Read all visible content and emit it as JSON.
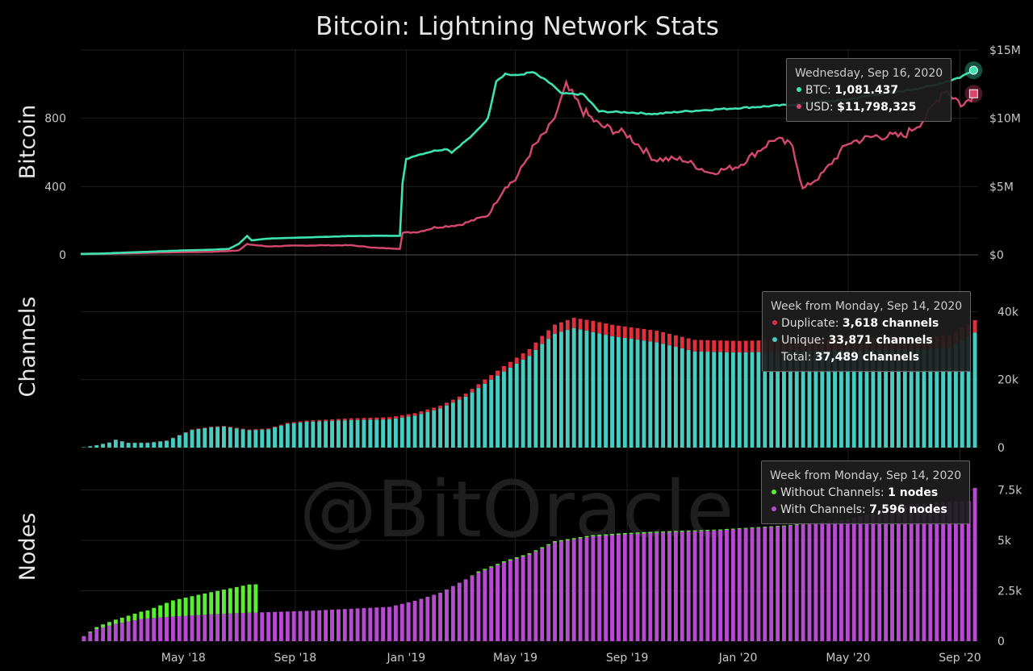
{
  "title": "Bitcoin: Lightning Network Stats",
  "watermark": "@BitOracle",
  "colors": {
    "btc_line": "#3de3b0",
    "usd_line": "#d6496d",
    "duplicate": "#e0303c",
    "unique": "#46cdc1",
    "without_channels": "#5aee30",
    "with_channels": "#b64bcf",
    "grid": "#1e1e1e",
    "background": "#000000"
  },
  "x_ticks": [
    "May '18",
    "Sep '18",
    "Jan '19",
    "May '19",
    "Sep '19",
    "Jan '20",
    "May '20",
    "Sep '20"
  ],
  "tooltips": {
    "bitcoin": {
      "header": "Wednesday, Sep 16, 2020",
      "btc_label": "BTC: ",
      "btc_value": "1,081.437",
      "usd_label": "USD: ",
      "usd_value": "$11,798,325"
    },
    "channels": {
      "header": "Week from Monday, Sep 14, 2020",
      "dup_label": "Duplicate: ",
      "dup_value": "3,618 channels",
      "uniq_label": "Unique: ",
      "uniq_value": "33,871 channels",
      "total_label": "Total: ",
      "total_value": "37,489 channels"
    },
    "nodes": {
      "header": "Week from Monday, Sep 14, 2020",
      "without_label": "Without Channels: ",
      "without_value": "1 nodes",
      "with_label": "With Channels: ",
      "with_value": "7,596 nodes"
    }
  },
  "chart_data": [
    {
      "type": "line",
      "panel": "bitcoin",
      "ylabel": "Bitcoin",
      "y_ticks_left": [
        "0",
        "400",
        "800"
      ],
      "ylim_left": [
        0,
        1200
      ],
      "y2_ticks_right": [
        "$0",
        "$5M",
        "$10M",
        "$15M"
      ],
      "ylim_right": [
        0,
        15000000
      ],
      "x_range": [
        "2018-01-08",
        "2020-09-21"
      ],
      "series": [
        {
          "name": "BTC",
          "axis": "left",
          "points": [
            [
              "2018-01-08",
              5
            ],
            [
              "2018-02-01",
              8
            ],
            [
              "2018-03-01",
              14
            ],
            [
              "2018-04-01",
              20
            ],
            [
              "2018-05-01",
              26
            ],
            [
              "2018-06-01",
              30
            ],
            [
              "2018-06-20",
              35
            ],
            [
              "2018-07-01",
              65
            ],
            [
              "2018-07-10",
              110
            ],
            [
              "2018-07-15",
              85
            ],
            [
              "2018-08-01",
              95
            ],
            [
              "2018-09-01",
              100
            ],
            [
              "2018-10-01",
              105
            ],
            [
              "2018-11-01",
              110
            ],
            [
              "2018-12-01",
              112
            ],
            [
              "2018-12-25",
              112
            ],
            [
              "2018-12-28",
              420
            ],
            [
              "2019-01-01",
              560
            ],
            [
              "2019-01-10",
              580
            ],
            [
              "2019-02-01",
              610
            ],
            [
              "2019-02-15",
              620
            ],
            [
              "2019-02-20",
              600
            ],
            [
              "2019-03-01",
              640
            ],
            [
              "2019-03-15",
              700
            ],
            [
              "2019-04-01",
              800
            ],
            [
              "2019-04-10",
              1020
            ],
            [
              "2019-04-20",
              1060
            ],
            [
              "2019-05-01",
              1050
            ],
            [
              "2019-05-20",
              1070
            ],
            [
              "2019-06-10",
              1000
            ],
            [
              "2019-06-20",
              945
            ],
            [
              "2019-07-15",
              940
            ],
            [
              "2019-08-01",
              840
            ],
            [
              "2019-09-01",
              835
            ],
            [
              "2019-10-01",
              825
            ],
            [
              "2019-11-01",
              840
            ],
            [
              "2019-12-01",
              850
            ],
            [
              "2020-01-01",
              860
            ],
            [
              "2020-02-01",
              870
            ],
            [
              "2020-03-01",
              880
            ],
            [
              "2020-04-01",
              895
            ],
            [
              "2020-05-01",
              910
            ],
            [
              "2020-06-01",
              940
            ],
            [
              "2020-07-01",
              960
            ],
            [
              "2020-08-01",
              990
            ],
            [
              "2020-09-01",
              1040
            ],
            [
              "2020-09-16",
              1081.437
            ]
          ]
        },
        {
          "name": "USD",
          "axis": "right",
          "points": [
            [
              "2018-01-08",
              80000
            ],
            [
              "2018-02-01",
              90000
            ],
            [
              "2018-03-01",
              120000
            ],
            [
              "2018-04-01",
              160000
            ],
            [
              "2018-05-01",
              200000
            ],
            [
              "2018-06-01",
              220000
            ],
            [
              "2018-07-01",
              330000
            ],
            [
              "2018-07-10",
              780000
            ],
            [
              "2018-08-01",
              620000
            ],
            [
              "2018-09-01",
              670000
            ],
            [
              "2018-10-01",
              700000
            ],
            [
              "2018-11-01",
              700000
            ],
            [
              "2018-12-01",
              500000
            ],
            [
              "2018-12-25",
              450000
            ],
            [
              "2018-12-28",
              1600000
            ],
            [
              "2019-01-15",
              1700000
            ],
            [
              "2019-02-01",
              2000000
            ],
            [
              "2019-03-01",
              2200000
            ],
            [
              "2019-04-01",
              2900000
            ],
            [
              "2019-04-20",
              5000000
            ],
            [
              "2019-05-01",
              5500000
            ],
            [
              "2019-05-20",
              7800000
            ],
            [
              "2019-06-10",
              9500000
            ],
            [
              "2019-06-26",
              12300000
            ],
            [
              "2019-07-15",
              10500000
            ],
            [
              "2019-08-01",
              9500000
            ],
            [
              "2019-09-01",
              8800000
            ],
            [
              "2019-10-01",
              7000000
            ],
            [
              "2019-11-01",
              7000000
            ],
            [
              "2019-12-01",
              6000000
            ],
            [
              "2020-01-01",
              6500000
            ],
            [
              "2020-02-10",
              8500000
            ],
            [
              "2020-03-01",
              8000000
            ],
            [
              "2020-03-12",
              4800000
            ],
            [
              "2020-04-01",
              5800000
            ],
            [
              "2020-05-01",
              8200000
            ],
            [
              "2020-06-01",
              8700000
            ],
            [
              "2020-07-01",
              8700000
            ],
            [
              "2020-07-25",
              10000000
            ],
            [
              "2020-08-15",
              12200000
            ],
            [
              "2020-09-05",
              10900000
            ],
            [
              "2020-09-16",
              11798325
            ]
          ]
        }
      ]
    },
    {
      "type": "bar",
      "panel": "channels",
      "stacked": true,
      "ylabel": "Channels",
      "y_ticks": [
        "0",
        "20k",
        "40k"
      ],
      "ylim": [
        0,
        42000
      ],
      "week_start": "2018-01-08",
      "weeks": 141,
      "series": [
        {
          "name": "Unique",
          "anchors": [
            [
              0,
              120
            ],
            [
              2,
              700
            ],
            [
              4,
              1500
            ],
            [
              5,
              2300
            ],
            [
              7,
              1400
            ],
            [
              10,
              1400
            ],
            [
              13,
              2000
            ],
            [
              17,
              5200
            ],
            [
              20,
              6000
            ],
            [
              22,
              6200
            ],
            [
              26,
              5100
            ],
            [
              29,
              5400
            ],
            [
              32,
              7000
            ],
            [
              35,
              7600
            ],
            [
              38,
              7800
            ],
            [
              42,
              8100
            ],
            [
              48,
              8300
            ],
            [
              52,
              9400
            ],
            [
              56,
              11500
            ],
            [
              60,
              15000
            ],
            [
              63,
              18800
            ],
            [
              66,
              22400
            ],
            [
              70,
              27000
            ],
            [
              72,
              30500
            ],
            [
              74,
              33500
            ],
            [
              77,
              35200
            ],
            [
              83,
              32800
            ],
            [
              90,
              31000
            ],
            [
              96,
              28300
            ],
            [
              103,
              28000
            ],
            [
              110,
              28300
            ],
            [
              116,
              28500
            ],
            [
              122,
              28800
            ],
            [
              127,
              28900
            ],
            [
              132,
              29000
            ],
            [
              136,
              29400
            ],
            [
              140,
              33871
            ]
          ],
          "last": 33871
        },
        {
          "name": "Duplicate",
          "anchors": [
            [
              0,
              0
            ],
            [
              30,
              250
            ],
            [
              60,
              900
            ],
            [
              70,
              2000
            ],
            [
              74,
              2700
            ],
            [
              80,
              3300
            ],
            [
              90,
              3400
            ],
            [
              110,
              3400
            ],
            [
              130,
              3500
            ],
            [
              140,
              3618
            ]
          ],
          "last": 3618
        }
      ]
    },
    {
      "type": "bar",
      "panel": "nodes",
      "stacked": true,
      "ylabel": "Nodes",
      "y_ticks": [
        "0",
        "2.5k",
        "5k",
        "7.5k"
      ],
      "ylim": [
        0,
        9000
      ],
      "week_start": "2018-01-08",
      "weeks": 141,
      "series": [
        {
          "name": "With Channels",
          "anchors": [
            [
              0,
              250
            ],
            [
              2,
              600
            ],
            [
              5,
              850
            ],
            [
              9,
              1100
            ],
            [
              13,
              1200
            ],
            [
              18,
              1300
            ],
            [
              25,
              1400
            ],
            [
              35,
              1500
            ],
            [
              48,
              1700
            ],
            [
              52,
              2000
            ],
            [
              56,
              2400
            ],
            [
              62,
              3400
            ],
            [
              66,
              3900
            ],
            [
              70,
              4300
            ],
            [
              74,
              4900
            ],
            [
              80,
              5200
            ],
            [
              85,
              5300
            ],
            [
              92,
              5400
            ],
            [
              100,
              5500
            ],
            [
              110,
              5700
            ],
            [
              120,
              6000
            ],
            [
              125,
              6400
            ],
            [
              130,
              6800
            ],
            [
              135,
              6900
            ],
            [
              139,
              6950
            ],
            [
              140,
              7596
            ]
          ],
          "last": 7596
        },
        {
          "name": "Without Channels",
          "anchors": [
            [
              0,
              0
            ],
            [
              3,
              150
            ],
            [
              6,
              250
            ],
            [
              10,
              400
            ],
            [
              14,
              800
            ],
            [
              18,
              1000
            ],
            [
              22,
              1200
            ],
            [
              26,
              1400
            ],
            [
              27,
              1400
            ],
            [
              28,
              0
            ],
            [
              60,
              0
            ],
            [
              62,
              60
            ],
            [
              90,
              60
            ],
            [
              100,
              40
            ],
            [
              120,
              30
            ],
            [
              130,
              0
            ],
            [
              140,
              1
            ]
          ],
          "last": 1
        }
      ]
    }
  ]
}
